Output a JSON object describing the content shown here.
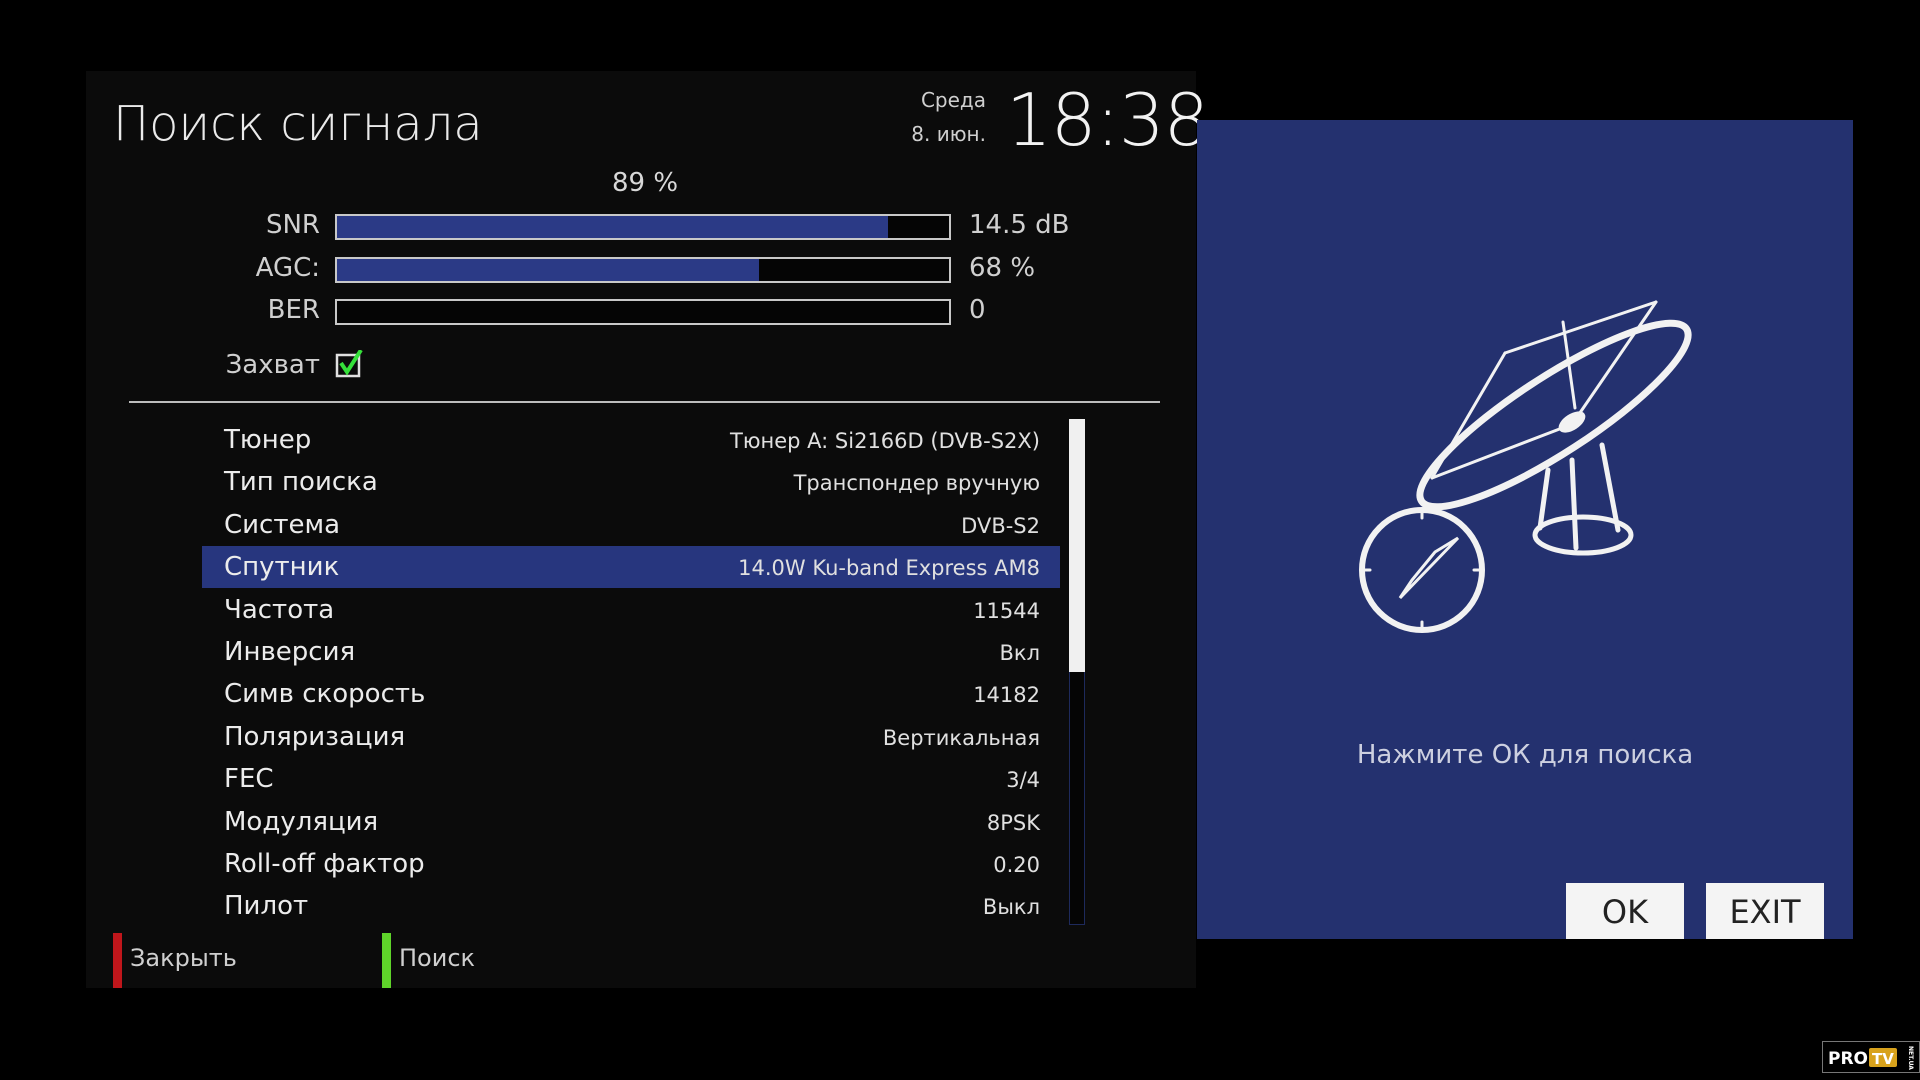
{
  "header": {
    "title": "Поиск сигнала",
    "weekday": "Среда",
    "date": "8. июн.",
    "time": "18:38"
  },
  "signal": {
    "quality": "89 %",
    "meters": [
      {
        "label": "SNR",
        "value": "14.5 dB",
        "fill_percent": 90
      },
      {
        "label": "AGC:",
        "value": "68 %",
        "fill_percent": 69
      },
      {
        "label": "BER",
        "value": "0",
        "fill_percent": 0
      }
    ],
    "lock_label": "Захват",
    "lock_checked": true
  },
  "settings": [
    {
      "label": "Тюнер",
      "value": "Тюнер A: Si2166D (DVB-S2X)"
    },
    {
      "label": "Тип поиска",
      "value": "Транспондер вручную"
    },
    {
      "label": "Система",
      "value": "DVB-S2"
    },
    {
      "label": "Спутник",
      "value": "14.0W Ku-band Express AM8",
      "selected": true
    },
    {
      "label": "Частота",
      "value": "11544"
    },
    {
      "label": "Инверсия",
      "value": "Вкл"
    },
    {
      "label": "Симв скорость",
      "value": "14182"
    },
    {
      "label": "Поляризация",
      "value": "Вертикальная"
    },
    {
      "label": "FEC",
      "value": "3/4"
    },
    {
      "label": "Модуляция",
      "value": "8PSK"
    },
    {
      "label": "Roll-off фактор",
      "value": "0.20"
    },
    {
      "label": "Пилот",
      "value": "Выкл"
    }
  ],
  "scrollbar": {
    "visible_fraction": 0.5,
    "position": 0
  },
  "footer": {
    "red_label": "Закрыть",
    "green_label": "Поиск",
    "red_color": "#c0161b",
    "green_color": "#5fd42a"
  },
  "dialog": {
    "icon": "satellite-dish-compass-icon",
    "hint": "Нажмите ОК для поиска",
    "ok_label": "OK",
    "exit_label": "EXIT",
    "background": "#24316f"
  },
  "watermark": {
    "text": "PROTV NET.UA"
  }
}
